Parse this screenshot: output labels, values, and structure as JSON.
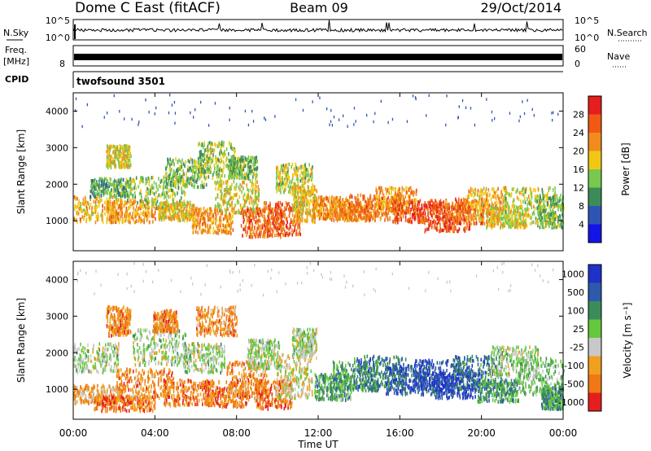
{
  "header": {
    "station": "Dome C East (fitACF)",
    "beam": "Beam 09",
    "date": "29/Oct/2014"
  },
  "strips": {
    "nsky_label": "N.Sky",
    "nsky_top": "10^5",
    "nsky_bottom": "10^0",
    "nsearch_label": "N.Search",
    "nsearch_top": "10^5",
    "nsearch_bottom": "10^0",
    "freq_label": "Freq.",
    "freq_unit": "[MHz]",
    "freq_tick": "8",
    "nave_label": "Nave",
    "nave_top": "60",
    "nave_bottom": "0",
    "cpid_label": "CPID",
    "cpid_value": "twofsound 3501"
  },
  "chart_data": [
    {
      "type": "heatmap",
      "panel": "power",
      "ylabel": "Slant Range [km]",
      "yticks": [
        "1000",
        "2000",
        "3000",
        "4000"
      ],
      "ylim": [
        180,
        4500
      ],
      "xlim": [
        0,
        24
      ],
      "colorbar_label": "Power [dB]",
      "colorbar_ticks": [
        "4",
        "8",
        "12",
        "16",
        "20",
        "24",
        "28"
      ],
      "colorbar_colors": [
        "#1414e6",
        "#2f55b4",
        "#3c8c5a",
        "#78c850",
        "#f0c814",
        "#f08c1e",
        "#f05a14",
        "#e61e1e"
      ],
      "blobs": [
        {
          "t": 1.0,
          "r": 1350,
          "dt": 1.4,
          "dr": 350,
          "v": 0.65
        },
        {
          "t": 1.8,
          "r": 1950,
          "dt": 1.0,
          "dr": 250,
          "v": 0.35
        },
        {
          "t": 2.8,
          "r": 1300,
          "dt": 1.2,
          "dr": 300,
          "v": 0.7
        },
        {
          "t": 2.2,
          "r": 2800,
          "dt": 0.6,
          "dr": 300,
          "v": 0.55
        },
        {
          "t": 4.0,
          "r": 1800,
          "dt": 1.5,
          "dr": 450,
          "v": 0.45
        },
        {
          "t": 5.0,
          "r": 1300,
          "dt": 0.9,
          "dr": 250,
          "v": 0.6
        },
        {
          "t": 5.5,
          "r": 2350,
          "dt": 1.0,
          "dr": 400,
          "v": 0.4
        },
        {
          "t": 6.8,
          "r": 1050,
          "dt": 1.0,
          "dr": 350,
          "v": 0.7
        },
        {
          "t": 7.0,
          "r": 2700,
          "dt": 0.9,
          "dr": 500,
          "v": 0.45
        },
        {
          "t": 8.0,
          "r": 1700,
          "dt": 1.1,
          "dr": 450,
          "v": 0.55
        },
        {
          "t": 8.3,
          "r": 2500,
          "dt": 0.7,
          "dr": 300,
          "v": 0.4
        },
        {
          "t": 9.2,
          "r": 1000,
          "dt": 1.0,
          "dr": 400,
          "v": 0.8
        },
        {
          "t": 10.2,
          "r": 1100,
          "dt": 0.9,
          "dr": 450,
          "v": 0.85
        },
        {
          "t": 10.8,
          "r": 2200,
          "dt": 0.9,
          "dr": 400,
          "v": 0.5
        },
        {
          "t": 11.3,
          "r": 1500,
          "dt": 0.6,
          "dr": 500,
          "v": 0.6
        },
        {
          "t": 12.6,
          "r": 1400,
          "dt": 0.9,
          "dr": 300,
          "v": 0.7
        },
        {
          "t": 13.6,
          "r": 1300,
          "dt": 1.0,
          "dr": 250,
          "v": 0.75
        },
        {
          "t": 14.8,
          "r": 1400,
          "dt": 1.3,
          "dr": 350,
          "v": 0.8
        },
        {
          "t": 15.8,
          "r": 1600,
          "dt": 1.0,
          "dr": 350,
          "v": 0.7
        },
        {
          "t": 17.0,
          "r": 1300,
          "dt": 1.4,
          "dr": 300,
          "v": 0.9
        },
        {
          "t": 18.2,
          "r": 1150,
          "dt": 1.2,
          "dr": 400,
          "v": 0.88
        },
        {
          "t": 19.3,
          "r": 1300,
          "dt": 1.1,
          "dr": 350,
          "v": 0.8
        },
        {
          "t": 20.2,
          "r": 1500,
          "dt": 1.0,
          "dr": 450,
          "v": 0.65
        },
        {
          "t": 21.2,
          "r": 1150,
          "dt": 1.0,
          "dr": 300,
          "v": 0.55
        },
        {
          "t": 22.4,
          "r": 1450,
          "dt": 1.3,
          "dr": 500,
          "v": 0.5
        },
        {
          "t": 23.4,
          "r": 1300,
          "dt": 0.7,
          "dr": 450,
          "v": 0.4
        }
      ]
    },
    {
      "type": "heatmap",
      "panel": "velocity",
      "ylabel": "Slant Range [km]",
      "yticks": [
        "1000",
        "2000",
        "3000",
        "4000"
      ],
      "ylim": [
        180,
        4500
      ],
      "xlim": [
        0,
        24
      ],
      "xticks": [
        "00:00",
        "04:00",
        "08:00",
        "12:00",
        "16:00",
        "20:00",
        "00:00"
      ],
      "xlabel": "Time UT",
      "colorbar_label": "Velocity [m s⁻¹]",
      "colorbar_ticks": [
        "1000",
        "500",
        "100",
        "25",
        "-25",
        "-100",
        "-500",
        "-1000"
      ],
      "colorbar_colors": [
        "#1e32c8",
        "#2d5aaa",
        "#3c8c5a",
        "#64c83c",
        "#c8c8c8",
        "#f0a01e",
        "#f07814",
        "#e61e1e"
      ],
      "blobs": [
        {
          "t": 0.8,
          "r": 1900,
          "dt": 1.4,
          "dr": 400,
          "v": 0.5
        },
        {
          "t": 1.2,
          "r": 900,
          "dt": 1.2,
          "dr": 250,
          "v": 0.75
        },
        {
          "t": 2.5,
          "r": 650,
          "dt": 1.5,
          "dr": 200,
          "v": 0.85
        },
        {
          "t": 2.2,
          "r": 2900,
          "dt": 0.6,
          "dr": 400,
          "v": 0.8
        },
        {
          "t": 3.5,
          "r": 1200,
          "dt": 1.4,
          "dr": 400,
          "v": 0.8
        },
        {
          "t": 4.2,
          "r": 2200,
          "dt": 1.3,
          "dr": 500,
          "v": 0.5
        },
        {
          "t": 4.5,
          "r": 2900,
          "dt": 0.6,
          "dr": 300,
          "v": 0.8
        },
        {
          "t": 5.6,
          "r": 950,
          "dt": 1.2,
          "dr": 350,
          "v": 0.82
        },
        {
          "t": 6.4,
          "r": 1900,
          "dt": 1.0,
          "dr": 400,
          "v": 0.5
        },
        {
          "t": 7.0,
          "r": 2900,
          "dt": 1.0,
          "dr": 400,
          "v": 0.78
        },
        {
          "t": 7.5,
          "r": 900,
          "dt": 1.1,
          "dr": 350,
          "v": 0.85
        },
        {
          "t": 8.5,
          "r": 1300,
          "dt": 1.0,
          "dr": 500,
          "v": 0.78
        },
        {
          "t": 9.3,
          "r": 2000,
          "dt": 0.8,
          "dr": 400,
          "v": 0.5
        },
        {
          "t": 9.8,
          "r": 900,
          "dt": 0.9,
          "dr": 400,
          "v": 0.85
        },
        {
          "t": 10.8,
          "r": 1400,
          "dt": 0.9,
          "dr": 600,
          "v": 0.6
        },
        {
          "t": 11.3,
          "r": 2300,
          "dt": 0.6,
          "dr": 400,
          "v": 0.5
        },
        {
          "t": 12.7,
          "r": 1100,
          "dt": 0.9,
          "dr": 350,
          "v": 0.35
        },
        {
          "t": 13.8,
          "r": 1400,
          "dt": 1.1,
          "dr": 400,
          "v": 0.3
        },
        {
          "t": 15.0,
          "r": 1500,
          "dt": 1.3,
          "dr": 450,
          "v": 0.22
        },
        {
          "t": 16.5,
          "r": 1300,
          "dt": 1.2,
          "dr": 400,
          "v": 0.15
        },
        {
          "t": 17.8,
          "r": 1400,
          "dt": 1.2,
          "dr": 450,
          "v": 0.06
        },
        {
          "t": 18.8,
          "r": 1150,
          "dt": 1.1,
          "dr": 350,
          "v": 0.04
        },
        {
          "t": 19.8,
          "r": 1500,
          "dt": 1.2,
          "dr": 450,
          "v": 0.2
        },
        {
          "t": 20.8,
          "r": 1000,
          "dt": 1.0,
          "dr": 300,
          "v": 0.32
        },
        {
          "t": 21.6,
          "r": 1800,
          "dt": 1.2,
          "dr": 400,
          "v": 0.5
        },
        {
          "t": 22.8,
          "r": 1400,
          "dt": 1.2,
          "dr": 500,
          "v": 0.42
        },
        {
          "t": 23.5,
          "r": 800,
          "dt": 0.6,
          "dr": 300,
          "v": 0.3
        }
      ]
    }
  ]
}
